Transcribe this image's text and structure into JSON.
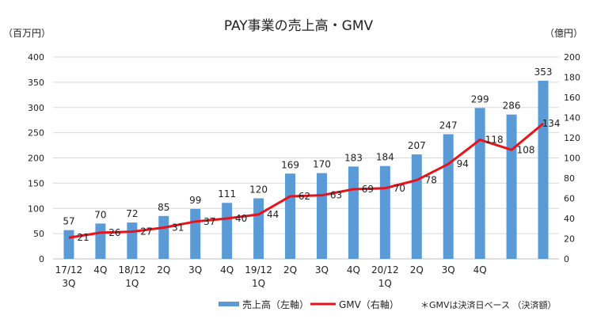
{
  "chart_data": {
    "type": "bar",
    "title": "PAY事業の売上高・GMV",
    "y_left_unit": "（百万円）",
    "y_right_unit": "（億円）",
    "y_left_lim": [
      0,
      400
    ],
    "y_left_ticks": [
      0,
      50,
      100,
      150,
      200,
      250,
      300,
      350,
      400
    ],
    "y_right_lim": [
      0,
      200
    ],
    "y_right_ticks": [
      0,
      20,
      40,
      60,
      80,
      100,
      120,
      140,
      160,
      180,
      200
    ],
    "grid": true,
    "categories": [
      [
        "17/12",
        "3Q"
      ],
      [
        "4Q"
      ],
      [
        "18/12",
        "1Q"
      ],
      [
        "2Q"
      ],
      [
        "3Q"
      ],
      [
        "4Q"
      ],
      [
        "19/12",
        "1Q"
      ],
      [
        "2Q"
      ],
      [
        "3Q"
      ],
      [
        "4Q"
      ],
      [
        "20/12",
        "1Q"
      ],
      [
        "2Q"
      ],
      [
        "3Q"
      ],
      [
        "4Q"
      ],
      [
        ""
      ],
      [
        ""
      ]
    ],
    "series": [
      {
        "name": "売上高（左軸）",
        "kind": "bar",
        "axis": "left",
        "color": "#5B9BD5",
        "values": [
          57,
          70,
          72,
          85,
          99,
          111,
          120,
          169,
          170,
          183,
          184,
          207,
          247,
          299,
          286,
          353
        ]
      },
      {
        "name": "GMV（右軸）",
        "kind": "line",
        "axis": "right",
        "color": "#E8121B",
        "values": [
          21,
          26,
          27,
          31,
          37,
          40,
          44,
          62,
          63,
          69,
          70,
          78,
          94,
          118,
          108,
          134
        ]
      }
    ],
    "note": "＊GMVは決済日ベース （決済額）",
    "legend_position": "bottom"
  }
}
